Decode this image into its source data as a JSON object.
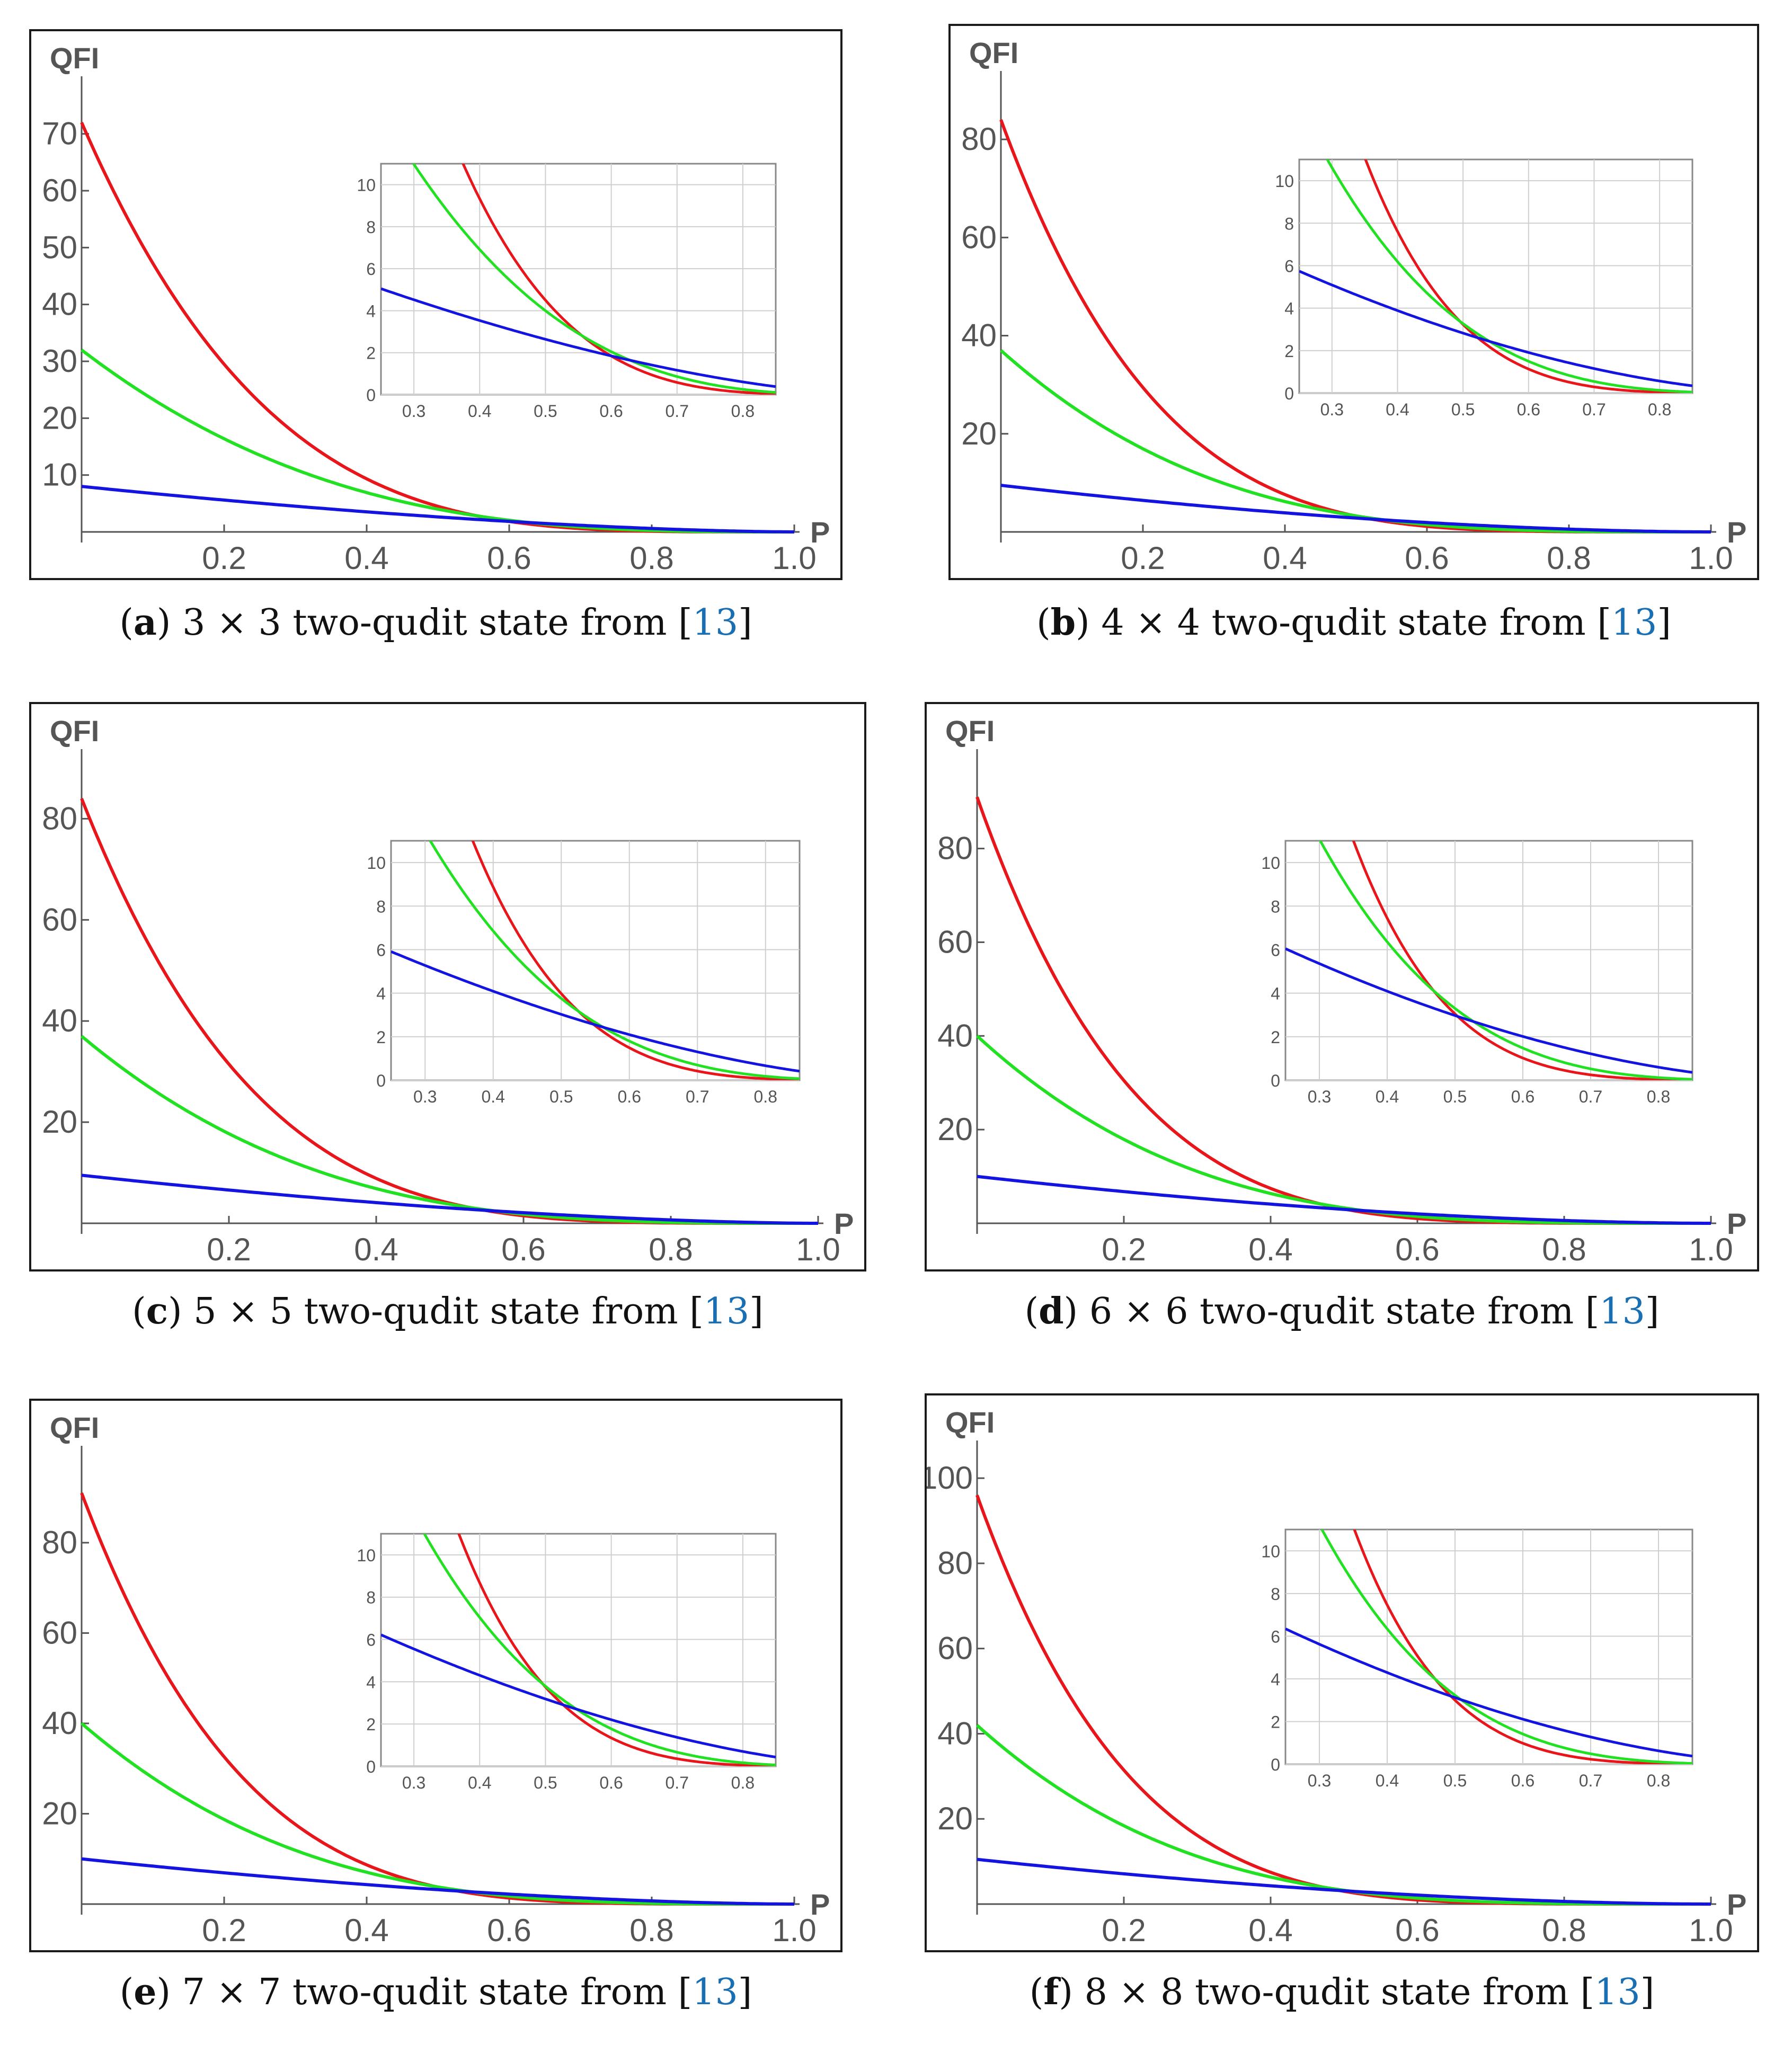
{
  "chart_data": [
    {
      "type": "line",
      "panel": "a",
      "caption": {
        "letter": "a",
        "text": "3 × 3 two-qudit state from [",
        "ref": "13",
        "end": "]"
      },
      "ylabel": "QFI",
      "xlabel": "P",
      "xlim": [
        0,
        1.0
      ],
      "ylim": [
        0,
        75
      ],
      "xticks": [
        0.2,
        0.4,
        0.6,
        0.8,
        1.0
      ],
      "yticks": [
        10,
        20,
        30,
        40,
        50,
        60,
        70
      ],
      "series": [
        {
          "color": "#e8161b",
          "y0": 72,
          "exp": 4.0
        },
        {
          "color": "#22e022",
          "y0": 32,
          "exp": 3.0
        },
        {
          "color": "#1414e0",
          "y0": 8,
          "exp": 1.6
        }
      ],
      "inset": {
        "xlim": [
          0.25,
          0.85
        ],
        "ylim": [
          0,
          11
        ],
        "xticks": [
          0.3,
          0.4,
          0.5,
          0.6,
          0.7,
          0.8
        ],
        "yticks": [
          0,
          2,
          4,
          6,
          8,
          10
        ]
      }
    },
    {
      "type": "line",
      "panel": "b",
      "caption": {
        "letter": "b",
        "text": "4 × 4 two-qudit state from [",
        "ref": "13",
        "end": "]"
      },
      "ylabel": "QFI",
      "xlabel": "P",
      "xlim": [
        0,
        1.0
      ],
      "ylim": [
        0,
        88
      ],
      "xticks": [
        0.2,
        0.4,
        0.6,
        0.8,
        1.0
      ],
      "yticks": [
        20,
        40,
        60,
        80
      ],
      "series": [
        {
          "color": "#e8161b",
          "y0": 84,
          "exp": 4.7
        },
        {
          "color": "#22e022",
          "y0": 37,
          "exp": 3.5
        },
        {
          "color": "#1414e0",
          "y0": 9.5,
          "exp": 1.75
        }
      ],
      "inset": {
        "xlim": [
          0.25,
          0.85
        ],
        "ylim": [
          0,
          11
        ],
        "xticks": [
          0.3,
          0.4,
          0.5,
          0.6,
          0.7,
          0.8
        ],
        "yticks": [
          0,
          2,
          4,
          6,
          8,
          10
        ]
      }
    },
    {
      "type": "line",
      "panel": "c",
      "caption": {
        "letter": "c",
        "text": "5 × 5 two-qudit state from [",
        "ref": "13",
        "end": "]"
      },
      "ylabel": "QFI",
      "xlabel": "P",
      "xlim": [
        0,
        1.0
      ],
      "ylim": [
        0,
        88
      ],
      "xticks": [
        0.2,
        0.4,
        0.6,
        0.8,
        1.0
      ],
      "yticks": [
        20,
        40,
        60,
        80
      ],
      "series": [
        {
          "color": "#e8161b",
          "y0": 84,
          "exp": 4.4
        },
        {
          "color": "#22e022",
          "y0": 37,
          "exp": 3.3
        },
        {
          "color": "#1414e0",
          "y0": 9.5,
          "exp": 1.65
        }
      ],
      "inset": {
        "xlim": [
          0.25,
          0.85
        ],
        "ylim": [
          0,
          11
        ],
        "xticks": [
          0.3,
          0.4,
          0.5,
          0.6,
          0.7,
          0.8
        ],
        "yticks": [
          0,
          2,
          4,
          6,
          8,
          10
        ]
      }
    },
    {
      "type": "line",
      "panel": "d",
      "caption": {
        "letter": "d",
        "text": "6 × 6 two-qudit state from [",
        "ref": "13",
        "end": "]"
      },
      "ylabel": "QFI",
      "xlabel": "P",
      "xlim": [
        0,
        1.0
      ],
      "ylim": [
        0,
        95
      ],
      "xticks": [
        0.2,
        0.4,
        0.6,
        0.8,
        1.0
      ],
      "yticks": [
        20,
        40,
        60,
        80
      ],
      "series": [
        {
          "color": "#e8161b",
          "y0": 91,
          "exp": 4.9
        },
        {
          "color": "#22e022",
          "y0": 40,
          "exp": 3.6
        },
        {
          "color": "#1414e0",
          "y0": 10,
          "exp": 1.75
        }
      ],
      "inset": {
        "xlim": [
          0.25,
          0.85
        ],
        "ylim": [
          0,
          11
        ],
        "xticks": [
          0.3,
          0.4,
          0.5,
          0.6,
          0.7,
          0.8
        ],
        "yticks": [
          0,
          2,
          4,
          6,
          8,
          10
        ]
      }
    },
    {
      "type": "line",
      "panel": "e",
      "caption": {
        "letter": "e",
        "text": "7 × 7 two-qudit state from [",
        "ref": "13",
        "end": "]"
      },
      "ylabel": "QFI",
      "xlabel": "P",
      "xlim": [
        0,
        1.0
      ],
      "ylim": [
        0,
        95
      ],
      "xticks": [
        0.2,
        0.4,
        0.6,
        0.8,
        1.0
      ],
      "yticks": [
        20,
        40,
        60,
        80
      ],
      "series": [
        {
          "color": "#e8161b",
          "y0": 91,
          "exp": 4.6
        },
        {
          "color": "#22e022",
          "y0": 40,
          "exp": 3.4
        },
        {
          "color": "#1414e0",
          "y0": 10,
          "exp": 1.65
        }
      ],
      "inset": {
        "xlim": [
          0.25,
          0.85
        ],
        "ylim": [
          0,
          11
        ],
        "xticks": [
          0.3,
          0.4,
          0.5,
          0.6,
          0.7,
          0.8
        ],
        "yticks": [
          0,
          2,
          4,
          6,
          8,
          10
        ]
      }
    },
    {
      "type": "line",
      "panel": "f",
      "caption": {
        "letter": "f",
        "text": "8 × 8 two-qudit state from [",
        "ref": "13",
        "end": "]"
      },
      "ylabel": "QFI",
      "xlabel": "P",
      "xlim": [
        0,
        1.0
      ],
      "ylim": [
        0,
        102
      ],
      "xticks": [
        0.2,
        0.4,
        0.6,
        0.8,
        1.0
      ],
      "yticks": [
        20,
        40,
        60,
        80,
        100
      ],
      "series": [
        {
          "color": "#e8161b",
          "y0": 96,
          "exp": 5.0
        },
        {
          "color": "#22e022",
          "y0": 42,
          "exp": 3.7
        },
        {
          "color": "#1414e0",
          "y0": 10.5,
          "exp": 1.75
        }
      ],
      "inset": {
        "xlim": [
          0.25,
          0.85
        ],
        "ylim": [
          0,
          11
        ],
        "xticks": [
          0.3,
          0.4,
          0.5,
          0.6,
          0.7,
          0.8
        ],
        "yticks": [
          0,
          2,
          4,
          6,
          8,
          10
        ]
      }
    }
  ]
}
